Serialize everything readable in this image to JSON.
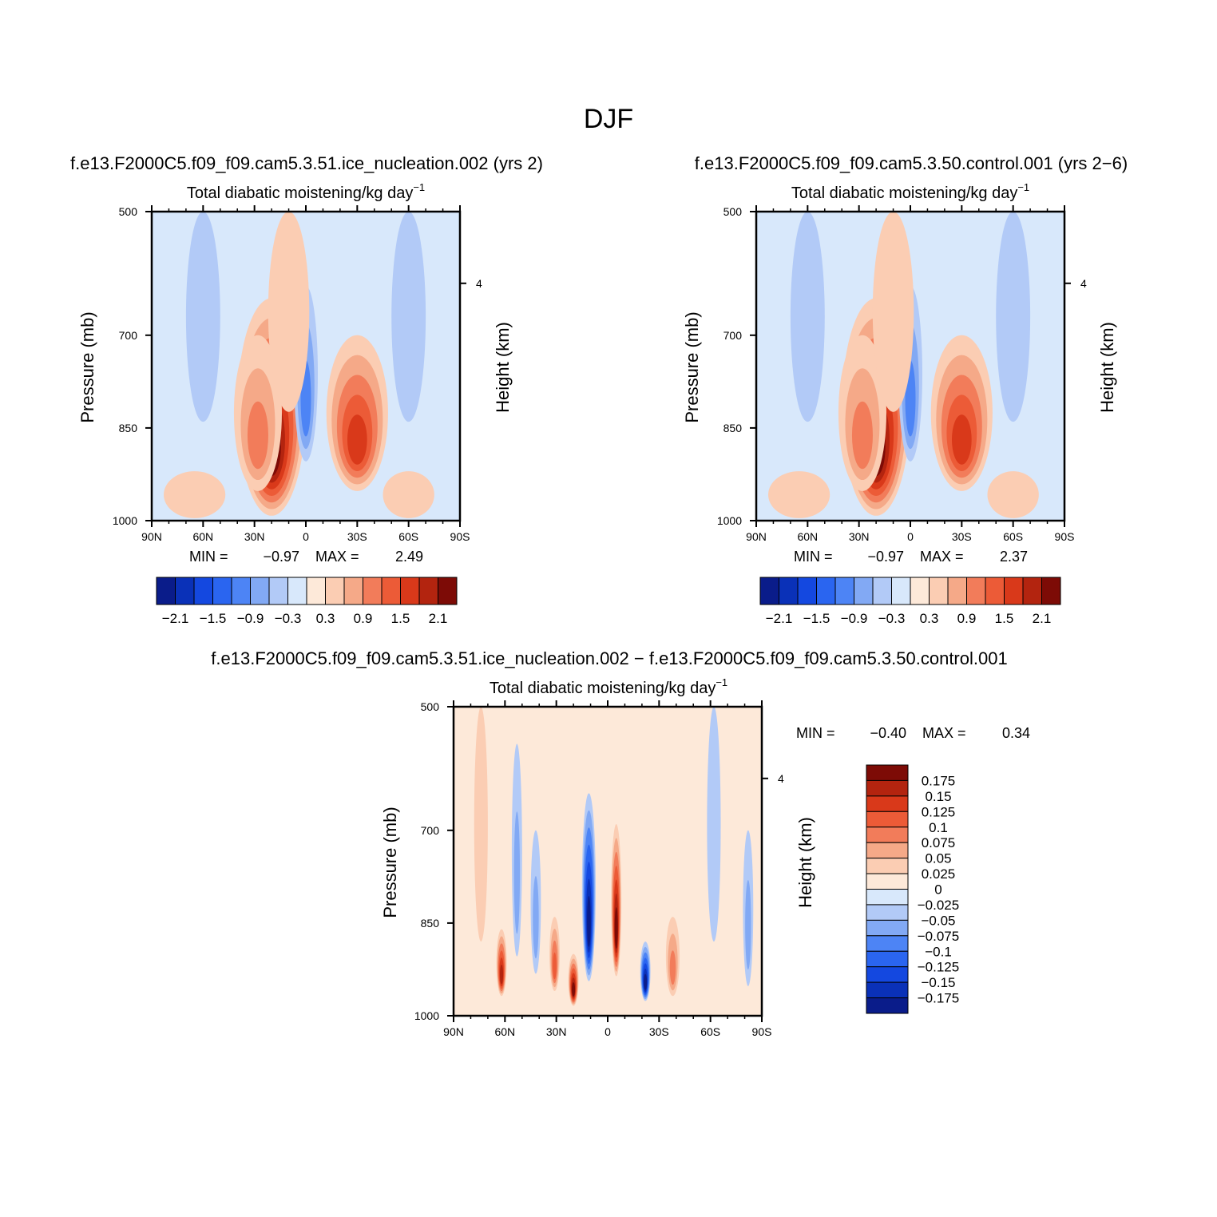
{
  "figure": {
    "title": "DJF"
  },
  "chart_data": [
    {
      "type": "heatmap",
      "case_title": "f.e13.F2000C5.f09_f09.cam5.3.51.ice_nucleation.002 (yrs 2)",
      "title": "Total diabatic moistening/kg day",
      "title_exp": "−1",
      "ylabel": "Pressure (mb)",
      "y2label": "Height (km)",
      "x_ticks": [
        "90N",
        "60N",
        "30N",
        "0",
        "30S",
        "60S",
        "90S"
      ],
      "x_values": [
        90,
        60,
        30,
        0,
        -30,
        -60,
        -90
      ],
      "xlim": [
        90,
        -90
      ],
      "y_ticks": [
        "500",
        "700",
        "850",
        "1000"
      ],
      "y_values": [
        500,
        700,
        850,
        1000
      ],
      "ylim": [
        500,
        1000
      ],
      "y2_ticks": [
        "4"
      ],
      "y2_pressure": [
        616
      ],
      "min_label": "MIN =",
      "min": "−0.97",
      "max_label": "MAX =",
      "max": "2.49",
      "levels": [
        -2.1,
        -1.8,
        -1.5,
        -1.2,
        -0.9,
        -0.6,
        -0.3,
        0,
        0.3,
        0.6,
        0.9,
        1.2,
        1.5,
        1.8,
        2.1
      ],
      "colorbar_labels": [
        "−2.1",
        "−1.5",
        "−0.9",
        "−0.3",
        "0.3",
        "0.9",
        "1.5",
        "2.1"
      ],
      "colorbar_orientation": "horizontal",
      "features": [
        {
          "lat": 20,
          "p": 980,
          "width_deg": 20,
          "top_p": 640,
          "amplitude": 2.4
        },
        {
          "lat": 28,
          "p": 880,
          "width_deg": 14,
          "top_p": 700,
          "amplitude": 1.1
        },
        {
          "lat": 0,
          "p": 760,
          "width_deg": 7,
          "top_p": 620,
          "amplitude": -1.0
        },
        {
          "lat": -30,
          "p": 880,
          "width_deg": 18,
          "top_p": 700,
          "amplitude": 1.6
        },
        {
          "lat": 10,
          "p": 560,
          "width_deg": 12,
          "top_p": 500,
          "amplitude": 0.35
        },
        {
          "lat": 60,
          "p": 600,
          "width_deg": 10,
          "top_p": 500,
          "amplitude": -0.45
        },
        {
          "lat": -60,
          "p": 600,
          "width_deg": 10,
          "top_p": 500,
          "amplitude": -0.45
        },
        {
          "lat": 65,
          "p": 990,
          "width_deg": 18,
          "top_p": 920,
          "amplitude": 0.5
        },
        {
          "lat": -60,
          "p": 990,
          "width_deg": 15,
          "top_p": 920,
          "amplitude": 0.45
        }
      ]
    },
    {
      "type": "heatmap",
      "case_title": "f.e13.F2000C5.f09_f09.cam5.3.50.control.001 (yrs 2−6)",
      "title": "Total diabatic moistening/kg day",
      "title_exp": "−1",
      "ylabel": "Pressure (mb)",
      "y2label": "Height (km)",
      "x_ticks": [
        "90N",
        "60N",
        "30N",
        "0",
        "30S",
        "60S",
        "90S"
      ],
      "x_values": [
        90,
        60,
        30,
        0,
        -30,
        -60,
        -90
      ],
      "xlim": [
        90,
        -90
      ],
      "y_ticks": [
        "500",
        "700",
        "850",
        "1000"
      ],
      "y_values": [
        500,
        700,
        850,
        1000
      ],
      "ylim": [
        500,
        1000
      ],
      "y2_ticks": [
        "4"
      ],
      "y2_pressure": [
        616
      ],
      "min_label": "MIN =",
      "min": "−0.97",
      "max_label": "MAX =",
      "max": "2.37",
      "levels": [
        -2.1,
        -1.8,
        -1.5,
        -1.2,
        -0.9,
        -0.6,
        -0.3,
        0,
        0.3,
        0.6,
        0.9,
        1.2,
        1.5,
        1.8,
        2.1
      ],
      "colorbar_labels": [
        "−2.1",
        "−1.5",
        "−0.9",
        "−0.3",
        "0.3",
        "0.9",
        "1.5",
        "2.1"
      ],
      "colorbar_orientation": "horizontal",
      "features": [
        {
          "lat": 20,
          "p": 980,
          "width_deg": 20,
          "top_p": 640,
          "amplitude": 2.3
        },
        {
          "lat": 28,
          "p": 880,
          "width_deg": 14,
          "top_p": 700,
          "amplitude": 1.1
        },
        {
          "lat": 0,
          "p": 760,
          "width_deg": 7,
          "top_p": 620,
          "amplitude": -1.0
        },
        {
          "lat": -30,
          "p": 880,
          "width_deg": 18,
          "top_p": 700,
          "amplitude": 1.5
        },
        {
          "lat": 10,
          "p": 560,
          "width_deg": 12,
          "top_p": 500,
          "amplitude": 0.35
        },
        {
          "lat": 60,
          "p": 600,
          "width_deg": 10,
          "top_p": 500,
          "amplitude": -0.45
        },
        {
          "lat": -60,
          "p": 600,
          "width_deg": 10,
          "top_p": 500,
          "amplitude": -0.45
        },
        {
          "lat": 65,
          "p": 990,
          "width_deg": 18,
          "top_p": 920,
          "amplitude": 0.5
        },
        {
          "lat": -60,
          "p": 990,
          "width_deg": 15,
          "top_p": 920,
          "amplitude": 0.45
        }
      ]
    },
    {
      "type": "heatmap",
      "case_title": "f.e13.F2000C5.f09_f09.cam5.3.51.ice_nucleation.002 − f.e13.F2000C5.f09_f09.cam5.3.50.control.001",
      "title": "Total diabatic moistening/kg day",
      "title_exp": "−1",
      "ylabel": "Pressure (mb)",
      "y2label": "Height (km)",
      "x_ticks": [
        "90N",
        "60N",
        "30N",
        "0",
        "30S",
        "60S",
        "90S"
      ],
      "x_values": [
        90,
        60,
        30,
        0,
        -30,
        -60,
        -90
      ],
      "xlim": [
        90,
        -90
      ],
      "y_ticks": [
        "500",
        "700",
        "850",
        "1000"
      ],
      "y_values": [
        500,
        700,
        850,
        1000
      ],
      "ylim": [
        500,
        1000
      ],
      "y2_ticks": [
        "4"
      ],
      "y2_pressure": [
        616
      ],
      "min_label": "MIN =",
      "min": "−0.40",
      "max_label": "MAX =",
      "max": "0.34",
      "levels": [
        -0.175,
        -0.15,
        -0.125,
        -0.1,
        -0.075,
        -0.05,
        -0.025,
        0,
        0.025,
        0.05,
        0.075,
        0.1,
        0.125,
        0.15,
        0.175
      ],
      "colorbar_labels": [
        "0.175",
        "0.15",
        "0.125",
        "0.1",
        "0.075",
        "0.05",
        "0.025",
        "0",
        "−0.025",
        "−0.05",
        "−0.075",
        "−0.1",
        "−0.125",
        "−0.15",
        "−0.175"
      ],
      "colorbar_orientation": "vertical",
      "features": [
        {
          "lat": 11,
          "p": 860,
          "width_deg": 4,
          "top_p": 640,
          "amplitude": -0.4
        },
        {
          "lat": -5,
          "p": 840,
          "width_deg": 3,
          "top_p": 690,
          "amplitude": 0.34
        },
        {
          "lat": 20,
          "p": 960,
          "width_deg": 3,
          "top_p": 900,
          "amplitude": 0.25
        },
        {
          "lat": -22,
          "p": 940,
          "width_deg": 3,
          "top_p": 880,
          "amplitude": -0.25
        },
        {
          "lat": 62,
          "p": 920,
          "width_deg": 3,
          "top_p": 860,
          "amplitude": 0.15
        },
        {
          "lat": 31,
          "p": 900,
          "width_deg": 3,
          "top_p": 840,
          "amplitude": 0.1
        },
        {
          "lat": 42,
          "p": 830,
          "width_deg": 3,
          "top_p": 700,
          "amplitude": -0.06
        },
        {
          "lat": 53,
          "p": 760,
          "width_deg": 3,
          "top_p": 560,
          "amplitude": -0.05
        },
        {
          "lat": -38,
          "p": 920,
          "width_deg": 4,
          "top_p": 840,
          "amplitude": 0.08
        },
        {
          "lat": -62,
          "p": 700,
          "width_deg": 4,
          "top_p": 500,
          "amplitude": -0.04
        },
        {
          "lat": 74,
          "p": 700,
          "width_deg": 4,
          "top_p": 500,
          "amplitude": 0.03
        },
        {
          "lat": -82,
          "p": 880,
          "width_deg": 3,
          "top_p": 700,
          "amplitude": -0.05
        }
      ]
    }
  ]
}
